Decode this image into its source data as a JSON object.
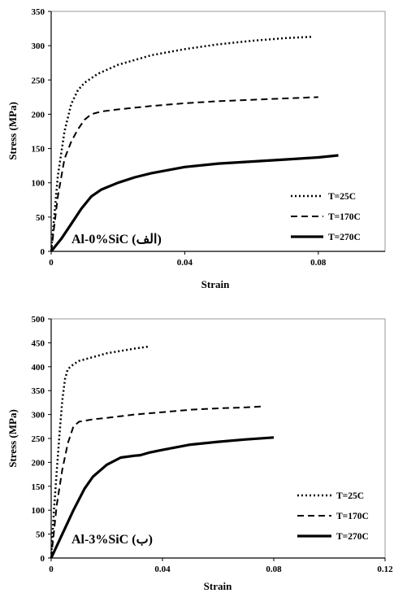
{
  "chart_data": [
    {
      "type": "line",
      "xlabel": "Strain",
      "ylabel": "Stress (MPa)",
      "xlim": [
        0,
        0.1
      ],
      "ylim": [
        0,
        350
      ],
      "xticks": [
        0,
        0.04,
        0.08
      ],
      "xtick_labels": [
        "0",
        "0.04",
        "0.08"
      ],
      "yticks": [
        0,
        50,
        100,
        150,
        200,
        250,
        300,
        350
      ],
      "grid": false,
      "legend_position": "bottom-right",
      "annotation": "Al-0%SiC (الف)",
      "series": [
        {
          "name": "T=25C",
          "style": "dotted",
          "x": [
            0,
            0.002,
            0.004,
            0.006,
            0.008,
            0.01,
            0.014,
            0.02,
            0.03,
            0.04,
            0.05,
            0.06,
            0.07,
            0.078
          ],
          "y": [
            0,
            110,
            175,
            215,
            235,
            246,
            259,
            272,
            286,
            295,
            302,
            307,
            311,
            313
          ]
        },
        {
          "name": "T=170C",
          "style": "dashed",
          "x": [
            0,
            0.002,
            0.004,
            0.006,
            0.008,
            0.01,
            0.012,
            0.015,
            0.02,
            0.03,
            0.04,
            0.05,
            0.06,
            0.07,
            0.08
          ],
          "y": [
            0,
            80,
            135,
            160,
            178,
            192,
            200,
            204,
            207,
            212,
            216,
            219,
            221,
            223,
            225
          ]
        },
        {
          "name": "T=270C",
          "style": "solid",
          "x": [
            0,
            0.003,
            0.006,
            0.009,
            0.012,
            0.015,
            0.02,
            0.025,
            0.03,
            0.04,
            0.05,
            0.06,
            0.07,
            0.08,
            0.086
          ],
          "y": [
            0,
            18,
            40,
            62,
            80,
            90,
            100,
            108,
            114,
            123,
            128,
            131,
            134,
            137,
            140
          ]
        }
      ]
    },
    {
      "type": "line",
      "xlabel": "Strain",
      "ylabel": "Stress (MPa)",
      "xlim": [
        0,
        0.12
      ],
      "ylim": [
        0,
        500
      ],
      "xticks": [
        0,
        0.04,
        0.08,
        0.12
      ],
      "xtick_labels": [
        "0",
        "0.04",
        "0.08",
        "0.12"
      ],
      "yticks": [
        0,
        50,
        100,
        150,
        200,
        250,
        300,
        350,
        400,
        450,
        500
      ],
      "grid": false,
      "legend_position": "bottom-right",
      "annotation": "Al-3%SiC (ب)",
      "series": [
        {
          "name": "T=25C",
          "style": "dotted",
          "x": [
            0,
            0.001,
            0.002,
            0.003,
            0.004,
            0.005,
            0.006,
            0.008,
            0.01,
            0.015,
            0.02,
            0.025,
            0.03,
            0.035
          ],
          "y": [
            0,
            100,
            180,
            260,
            330,
            375,
            395,
            405,
            412,
            420,
            428,
            433,
            438,
            442
          ]
        },
        {
          "name": "T=170C",
          "style": "dashed",
          "x": [
            0,
            0.002,
            0.004,
            0.006,
            0.008,
            0.01,
            0.015,
            0.02,
            0.03,
            0.04,
            0.05,
            0.06,
            0.07,
            0.076
          ],
          "y": [
            0,
            110,
            185,
            240,
            275,
            285,
            290,
            293,
            300,
            305,
            310,
            313,
            315,
            317
          ]
        },
        {
          "name": "T=270C",
          "style": "solid",
          "x": [
            0,
            0.004,
            0.008,
            0.012,
            0.015,
            0.02,
            0.025,
            0.03,
            0.032,
            0.035,
            0.04,
            0.05,
            0.06,
            0.07,
            0.08
          ],
          "y": [
            0,
            50,
            100,
            145,
            170,
            195,
            210,
            214,
            215,
            220,
            226,
            237,
            243,
            248,
            252
          ]
        }
      ]
    }
  ]
}
